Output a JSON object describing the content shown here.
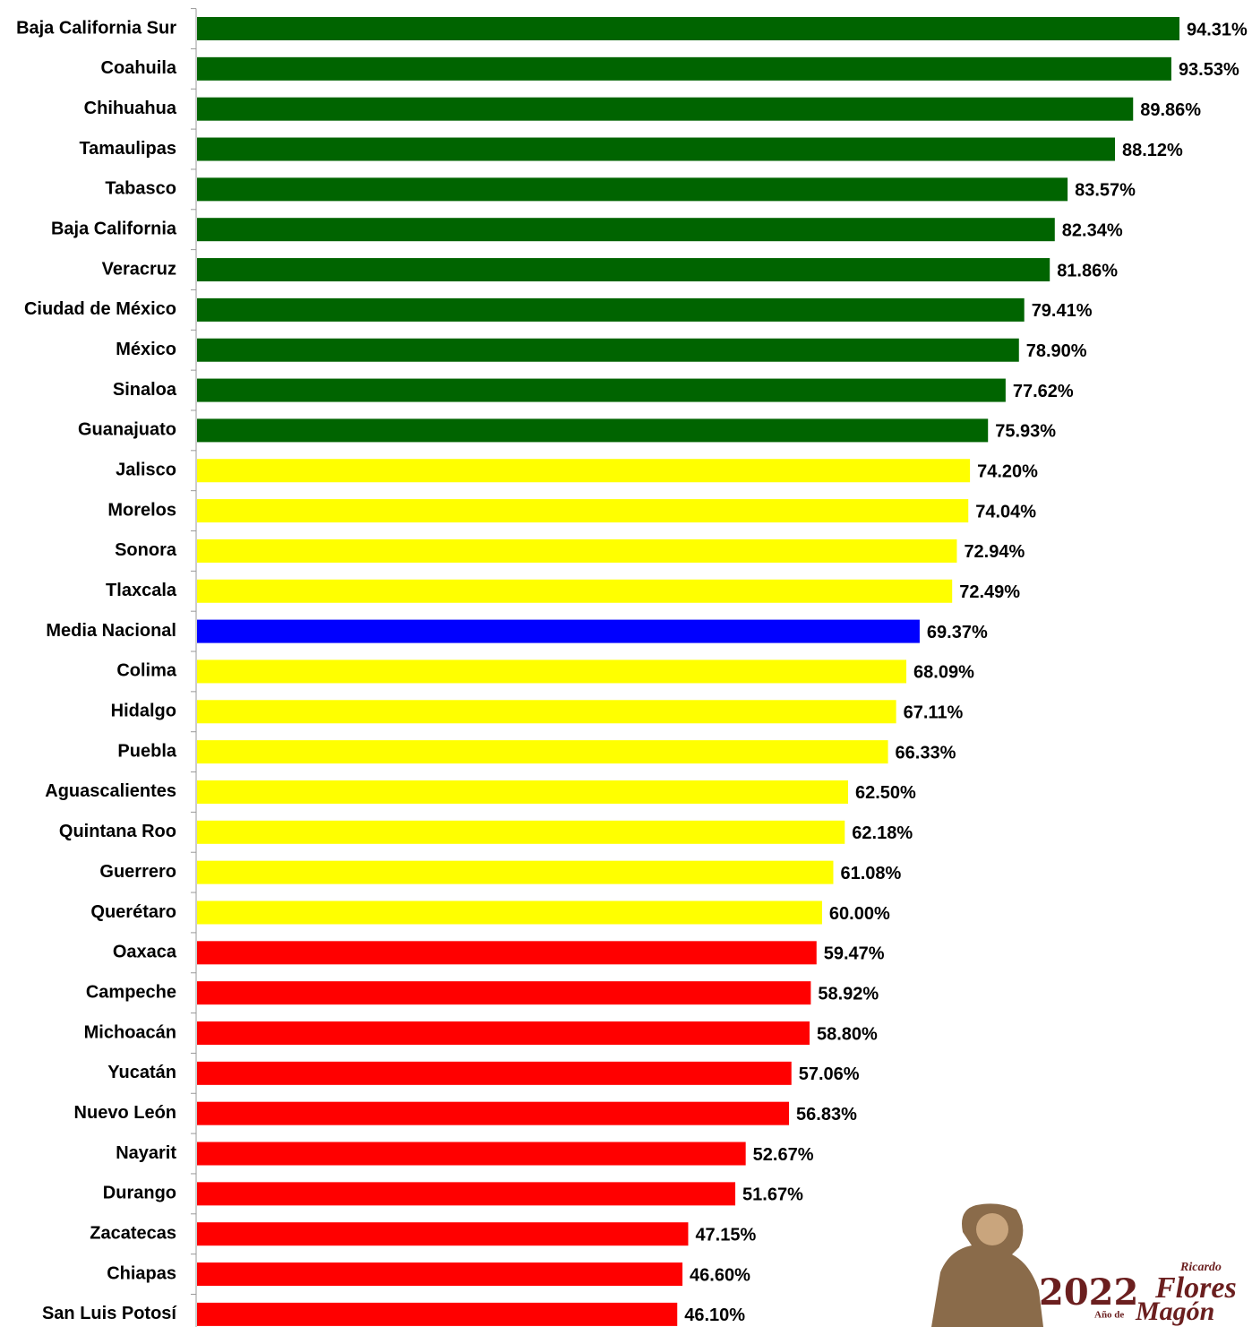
{
  "chart_data": {
    "type": "bar",
    "orientation": "horizontal",
    "categories": [
      "Baja California Sur",
      "Coahuila",
      "Chihuahua",
      "Tamaulipas",
      "Tabasco",
      "Baja California",
      "Veracruz",
      "Ciudad de México",
      "México",
      "Sinaloa",
      "Guanajuato",
      "Jalisco",
      "Morelos",
      "Sonora",
      "Tlaxcala",
      "Media Nacional",
      "Colima",
      "Hidalgo",
      "Puebla",
      "Aguascalientes",
      "Quintana Roo",
      "Guerrero",
      "Querétaro",
      "Oaxaca",
      "Campeche",
      "Michoacán",
      "Yucatán",
      "Nuevo León",
      "Nayarit",
      "Durango",
      "Zacatecas",
      "Chiapas",
      "San Luis Potosí"
    ],
    "values": [
      94.31,
      93.53,
      89.86,
      88.12,
      83.57,
      82.34,
      81.86,
      79.41,
      78.9,
      77.62,
      75.93,
      74.2,
      74.04,
      72.94,
      72.49,
      69.37,
      68.09,
      67.11,
      66.33,
      62.5,
      62.18,
      61.08,
      60.0,
      59.47,
      58.92,
      58.8,
      57.06,
      56.83,
      52.67,
      51.67,
      47.15,
      46.6,
      46.1
    ],
    "value_labels": [
      "94.31%",
      "93.53%",
      "89.86%",
      "88.12%",
      "83.57%",
      "82.34%",
      "81.86%",
      "79.41%",
      "78.90%",
      "77.62%",
      "75.93%",
      "74.20%",
      "74.04%",
      "72.94%",
      "72.49%",
      "69.37%",
      "68.09%",
      "67.11%",
      "66.33%",
      "62.50%",
      "62.18%",
      "61.08%",
      "60.00%",
      "59.47%",
      "58.92%",
      "58.80%",
      "57.06%",
      "56.83%",
      "52.67%",
      "51.67%",
      "47.15%",
      "46.60%",
      "46.10%"
    ],
    "colors": [
      "#006400",
      "#006400",
      "#006400",
      "#006400",
      "#006400",
      "#006400",
      "#006400",
      "#006400",
      "#006400",
      "#006400",
      "#006400",
      "#ffff00",
      "#ffff00",
      "#ffff00",
      "#ffff00",
      "#0000ff",
      "#ffff00",
      "#ffff00",
      "#ffff00",
      "#ffff00",
      "#ffff00",
      "#ffff00",
      "#ffff00",
      "#ff0000",
      "#ff0000",
      "#ff0000",
      "#ff0000",
      "#ff0000",
      "#ff0000",
      "#ff0000",
      "#ff0000",
      "#ff0000",
      "#ff0000"
    ]
  },
  "logo": {
    "top": "Ricardo",
    "year": "2022",
    "prefix": "Año de",
    "name_line1": "Flores",
    "name_line2": "Magón"
  }
}
